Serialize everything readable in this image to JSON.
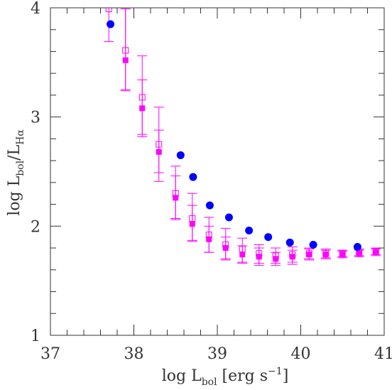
{
  "chart_data": {
    "type": "scatter",
    "xlabel": {
      "main": "log L",
      "sub": "bol",
      "after": " [erg s",
      "sup": "−1",
      "close": "]"
    },
    "ylabel": {
      "main": "log L",
      "sub1": "bol",
      "mid": "/L",
      "sub2": "Hα"
    },
    "xlim": [
      37,
      41
    ],
    "ylim": [
      1,
      4
    ],
    "x_ticks": [
      "37",
      "38",
      "39",
      "40",
      "41"
    ],
    "y_ticks": [
      "1",
      "2",
      "3",
      "4"
    ],
    "grid": false,
    "legend": "none",
    "series": [
      {
        "marker": "filled-circle",
        "color": "#0000ff",
        "points": [
          {
            "x": 37.72,
            "y": 3.85
          },
          {
            "x": 38.56,
            "y": 2.65
          },
          {
            "x": 38.71,
            "y": 2.45
          },
          {
            "x": 38.91,
            "y": 2.19
          },
          {
            "x": 39.14,
            "y": 2.08
          },
          {
            "x": 39.38,
            "y": 1.96
          },
          {
            "x": 39.61,
            "y": 1.9
          },
          {
            "x": 39.87,
            "y": 1.85
          },
          {
            "x": 40.15,
            "y": 1.83
          },
          {
            "x": 40.68,
            "y": 1.81
          }
        ]
      },
      {
        "marker": "filled-square",
        "color": "#ff00ff",
        "points": [
          {
            "x": 37.9,
            "y": 3.52,
            "ylo": 3.25,
            "yhi": 4.0
          },
          {
            "x": 38.1,
            "y": 3.08,
            "ylo": 2.82,
            "yhi": 3.34
          },
          {
            "x": 38.3,
            "y": 2.68,
            "ylo": 2.49,
            "yhi": 2.88
          },
          {
            "x": 38.5,
            "y": 2.26,
            "ylo": 2.07,
            "yhi": 2.46
          },
          {
            "x": 38.7,
            "y": 2.02,
            "ylo": 1.87,
            "yhi": 2.19
          },
          {
            "x": 38.9,
            "y": 1.88,
            "ylo": 1.76,
            "yhi": 2.0
          },
          {
            "x": 39.1,
            "y": 1.8,
            "ylo": 1.7,
            "yhi": 1.9
          },
          {
            "x": 39.3,
            "y": 1.74,
            "ylo": 1.66,
            "yhi": 1.82
          },
          {
            "x": 39.5,
            "y": 1.72,
            "ylo": 1.64,
            "yhi": 1.8
          },
          {
            "x": 39.7,
            "y": 1.7,
            "ylo": 1.64,
            "yhi": 1.76
          },
          {
            "x": 39.9,
            "y": 1.72,
            "ylo": 1.65,
            "yhi": 1.78
          },
          {
            "x": 40.1,
            "y": 1.74,
            "ylo": 1.69,
            "yhi": 1.79
          },
          {
            "x": 40.3,
            "y": 1.74,
            "ylo": 1.7,
            "yhi": 1.78
          },
          {
            "x": 40.5,
            "y": 1.74,
            "ylo": 1.71,
            "yhi": 1.77
          },
          {
            "x": 40.7,
            "y": 1.75,
            "ylo": 1.72,
            "yhi": 1.78
          },
          {
            "x": 40.9,
            "y": 1.76,
            "ylo": 1.73,
            "yhi": 1.79
          }
        ]
      },
      {
        "marker": "open-square",
        "color": "#ff00ff",
        "points": [
          {
            "x": 37.7,
            "y": 3.99,
            "ylo": 3.69,
            "yhi": 4.0
          },
          {
            "x": 37.9,
            "y": 3.61,
            "ylo": 3.24,
            "yhi": 3.99
          },
          {
            "x": 38.1,
            "y": 3.18,
            "ylo": 2.84,
            "yhi": 3.56
          },
          {
            "x": 38.3,
            "y": 2.75,
            "ylo": 2.41,
            "yhi": 3.09
          },
          {
            "x": 38.5,
            "y": 2.3,
            "ylo": 2.06,
            "yhi": 2.55
          },
          {
            "x": 38.7,
            "y": 2.07,
            "ylo": 1.86,
            "yhi": 2.3
          },
          {
            "x": 38.9,
            "y": 1.92,
            "ylo": 1.76,
            "yhi": 2.08
          },
          {
            "x": 39.1,
            "y": 1.83,
            "ylo": 1.69,
            "yhi": 1.98
          },
          {
            "x": 39.3,
            "y": 1.79,
            "ylo": 1.67,
            "yhi": 1.89
          },
          {
            "x": 39.5,
            "y": 1.75,
            "ylo": 1.66,
            "yhi": 1.83
          },
          {
            "x": 39.7,
            "y": 1.73,
            "ylo": 1.66,
            "yhi": 1.8
          },
          {
            "x": 39.9,
            "y": 1.74,
            "ylo": 1.67,
            "yhi": 1.81
          },
          {
            "x": 40.1,
            "y": 1.75,
            "ylo": 1.7,
            "yhi": 1.8
          },
          {
            "x": 40.3,
            "y": 1.75,
            "ylo": 1.71,
            "yhi": 1.79
          },
          {
            "x": 40.5,
            "y": 1.75,
            "ylo": 1.72,
            "yhi": 1.78
          },
          {
            "x": 40.7,
            "y": 1.76,
            "ylo": 1.73,
            "yhi": 1.79
          },
          {
            "x": 40.9,
            "y": 1.77,
            "ylo": 1.74,
            "yhi": 1.8
          }
        ]
      }
    ]
  }
}
